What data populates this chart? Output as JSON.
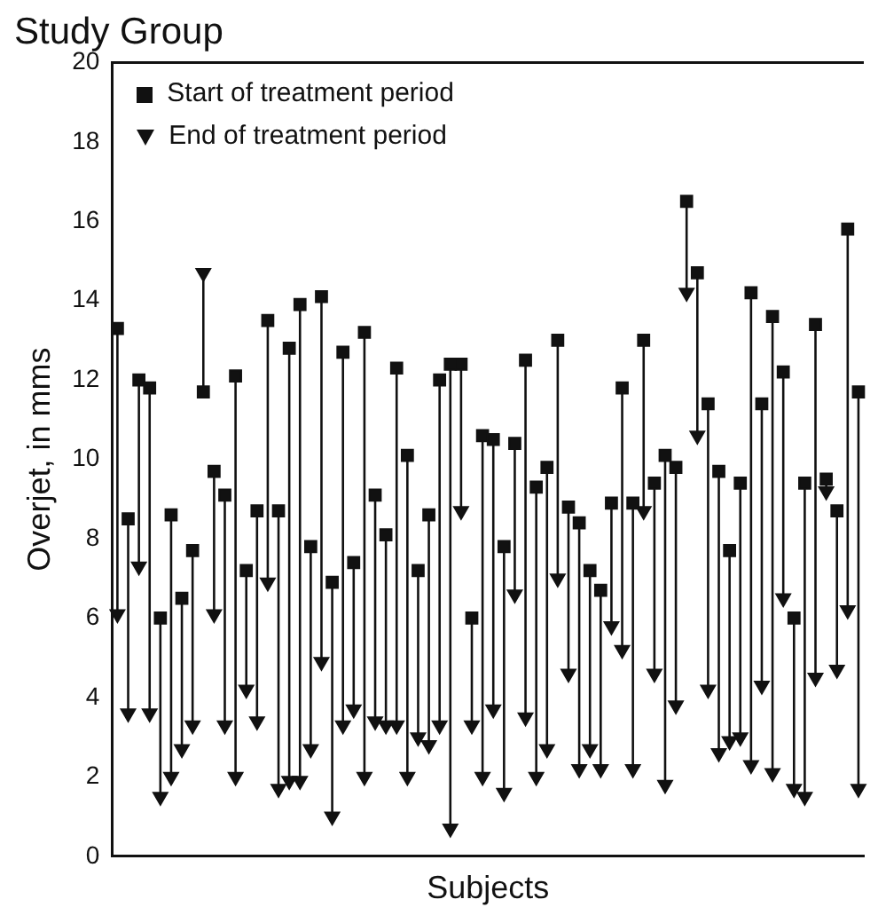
{
  "chart_data": {
    "type": "scatter",
    "title": "Study Group",
    "xlabel": "Subjects",
    "ylabel": "Overjet, in mms",
    "categories": [
      null,
      null,
      null,
      null,
      null,
      null,
      null,
      null,
      null,
      null,
      null,
      null,
      null,
      null,
      null,
      null,
      null,
      null,
      null,
      null,
      null,
      null,
      null,
      null,
      null,
      null,
      null,
      null,
      null,
      null,
      null,
      null,
      null,
      null,
      null,
      null,
      null,
      null,
      null,
      null,
      null,
      null,
      null,
      null,
      null,
      null,
      null,
      null,
      null,
      null,
      null,
      null,
      null,
      null,
      null,
      null,
      null,
      null,
      null,
      null,
      null,
      null,
      null,
      null,
      null,
      null,
      null,
      null,
      null,
      null
    ],
    "series": [
      {
        "name": "Start of treatment period",
        "color": "#111111",
        "marker": "square",
        "values": [
          13.3,
          8.5,
          12.0,
          11.8,
          6.0,
          8.6,
          6.5,
          7.7,
          11.7,
          9.7,
          9.1,
          12.1,
          7.2,
          8.7,
          13.5,
          8.7,
          12.8,
          13.9,
          7.8,
          14.1,
          6.9,
          12.7,
          7.4,
          13.2,
          9.1,
          8.1,
          12.3,
          10.1,
          7.2,
          8.6,
          12.0,
          12.4,
          12.4,
          6.0,
          10.6,
          10.5,
          7.8,
          10.4,
          12.5,
          9.3,
          9.8,
          13.0,
          8.8,
          8.4,
          7.2,
          6.7,
          8.9,
          11.8,
          8.9,
          13.0,
          9.4,
          10.1,
          9.8,
          16.5,
          14.7,
          11.4,
          9.7,
          7.7,
          9.4,
          14.2,
          11.4,
          13.6,
          12.2,
          6.0,
          9.4,
          13.4,
          9.5,
          8.7,
          15.8,
          11.7
        ]
      },
      {
        "name": "End of treatment period",
        "color": "#111111",
        "marker": "triangle",
        "values": [
          6.1,
          3.6,
          7.3,
          3.6,
          1.5,
          2.0,
          2.7,
          3.3,
          14.7,
          6.1,
          3.3,
          2.0,
          4.2,
          3.4,
          6.9,
          1.7,
          1.9,
          1.9,
          2.7,
          4.9,
          1.0,
          3.3,
          3.7,
          2.0,
          3.4,
          3.3,
          3.3,
          2.0,
          3.0,
          2.8,
          3.3,
          0.7,
          8.7,
          3.3,
          2.0,
          3.7,
          1.6,
          6.6,
          3.5,
          2.0,
          2.7,
          7.0,
          4.6,
          2.2,
          2.7,
          2.2,
          5.8,
          5.2,
          2.2,
          8.7,
          4.6,
          1.8,
          3.8,
          14.2,
          10.6,
          4.2,
          2.6,
          2.9,
          3.0,
          2.3,
          4.3,
          2.1,
          6.5,
          1.7,
          1.5,
          4.5,
          9.2,
          4.7,
          6.2,
          1.7
        ]
      }
    ],
    "ylim": [
      0,
      20
    ],
    "yticks": [
      0,
      2,
      4,
      6,
      8,
      10,
      12,
      14,
      16,
      18,
      20
    ],
    "grid": false,
    "legend": "top left",
    "tick_labels": "y"
  }
}
